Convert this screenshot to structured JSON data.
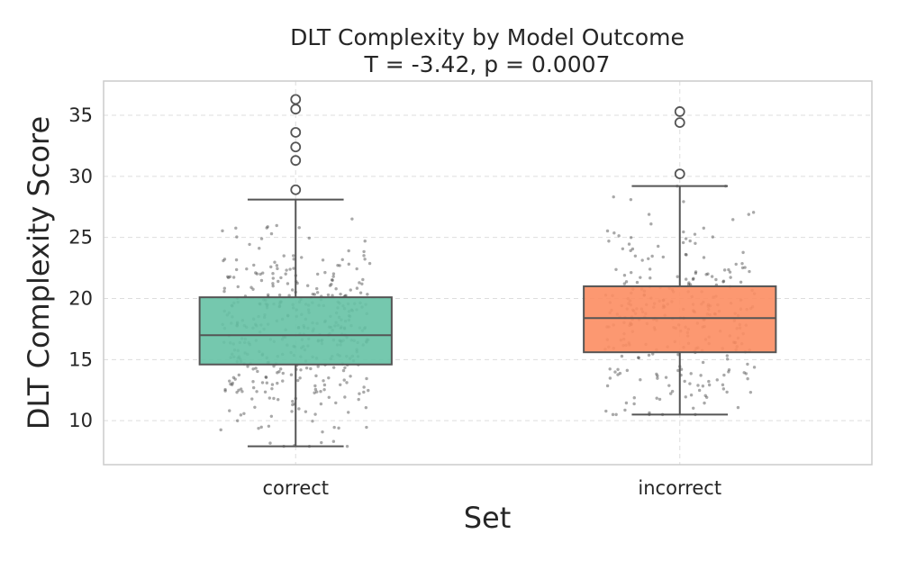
{
  "chart_data": {
    "type": "box",
    "title": "DLT Complexity by Model Outcome",
    "subtitle": "T = -3.42, p = 0.0007",
    "xlabel": "Set",
    "ylabel": "DLT Complexity Score",
    "categories": [
      "correct",
      "incorrect"
    ],
    "ylim": [
      6.4,
      37.8
    ],
    "yticks": [
      10,
      15,
      20,
      25,
      30,
      35
    ],
    "grid": true,
    "boxes": [
      {
        "category": "correct",
        "color": "#66c2a5",
        "whisker_low": 7.9,
        "q1": 14.6,
        "median": 17.0,
        "q3": 20.1,
        "whisker_high": 28.1,
        "outliers": [
          28.9,
          31.3,
          32.4,
          33.6,
          35.5,
          36.3
        ]
      },
      {
        "category": "incorrect",
        "color": "#fc8d62",
        "whisker_low": 10.5,
        "q1": 15.6,
        "median": 18.4,
        "q3": 21.0,
        "whisker_high": 29.2,
        "outliers": [
          30.2,
          34.4,
          35.3
        ]
      }
    ]
  }
}
